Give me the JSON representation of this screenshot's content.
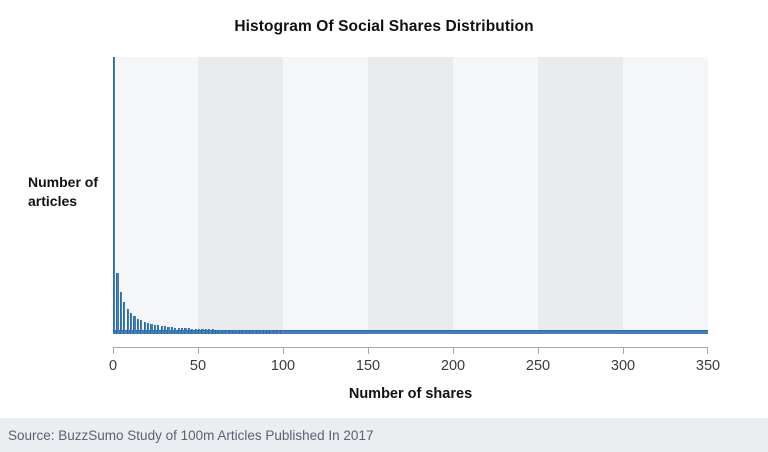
{
  "title": "Histogram Of Social Shares Distribution",
  "source_line": "Source: BuzzSumo Study of 100m Articles Published In 2017",
  "chart_data": {
    "type": "bar",
    "subtype": "histogram",
    "title": "Histogram Of Social Shares Distribution",
    "xlabel": "Number of shares",
    "ylabel": "Number of articles",
    "ylabel_lines": [
      "Number of",
      "articles"
    ],
    "xlim": [
      0,
      350
    ],
    "x_ticks": [
      0,
      50,
      100,
      150,
      200,
      250,
      300,
      350
    ],
    "y_axis_tick_labels": "none (unlabeled frequency axis)",
    "legend": "none",
    "grid": "alternating vertical background bands every 50 shares",
    "bin_width_shares": 2,
    "bar_heights_pct_of_max": [
      100,
      22,
      15,
      11.5,
      9.2,
      7.6,
      6.4,
      5.6,
      4.9,
      4.4,
      4.0,
      3.6,
      3.3,
      3.1,
      2.9,
      2.75,
      2.6,
      2.45,
      2.35,
      2.25,
      2.15,
      2.05,
      2.0,
      1.95,
      1.9,
      1.85,
      1.8,
      1.75,
      1.7,
      1.65,
      1.6,
      1.6,
      1.55,
      1.55,
      1.5,
      1.5,
      1.45,
      1.45,
      1.4,
      1.4,
      1.4,
      1.35,
      1.35,
      1.35,
      1.3,
      1.3,
      1.3,
      1.3,
      1.25,
      1.25
    ],
    "tail_note": "beyond ~100 shares the bars merge into a continuous thin strip of ~1.3% height extending to 350",
    "tail_height_pct": 1.3,
    "colors": {
      "bar_fill": "#4280bd",
      "bar_edge": "#2e6ba6",
      "band_light": "#f4f6f7",
      "band_dark": "#e9ebed",
      "axis": "#a9a9a9",
      "tick_label": "#3b3b3b",
      "title_text": "#111111",
      "footer_bg": "#ecedf0",
      "footer_text": "#5b6270"
    }
  }
}
